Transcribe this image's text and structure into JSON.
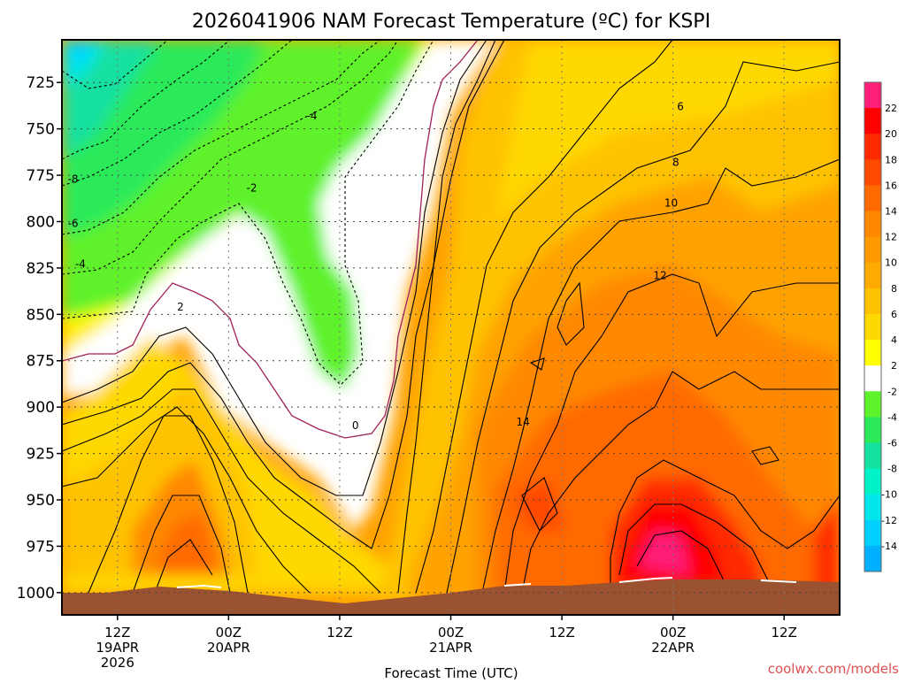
{
  "chart_data": {
    "type": "heatmap",
    "title": "2026041906 NAM Forecast Temperature (ºC) for KSPI",
    "xlabel": "Forecast Time (UTC)",
    "ylabel": "",
    "y_ticks": [
      725,
      750,
      775,
      800,
      825,
      850,
      875,
      900,
      925,
      950,
      975,
      1000
    ],
    "ylim": [
      1012,
      702
    ],
    "y_scale": "pressure (inverted)",
    "x_ticks": [
      {
        "line1": "12Z",
        "line2": "19APR",
        "line3": "2026"
      },
      {
        "line1": "00Z",
        "line2": "20APR",
        "line3": ""
      },
      {
        "line1": "12Z",
        "line2": "",
        "line3": ""
      },
      {
        "line1": "00Z",
        "line2": "21APR",
        "line3": ""
      },
      {
        "line1": "12Z",
        "line2": "",
        "line3": ""
      },
      {
        "line1": "00Z",
        "line2": "22APR",
        "line3": ""
      },
      {
        "line1": "12Z",
        "line2": "",
        "line3": ""
      }
    ],
    "x_tick_hours": [
      6,
      18,
      30,
      42,
      54,
      66,
      78
    ],
    "xlim": [
      0,
      84
    ],
    "grid": true,
    "colorbar_levels": [
      22,
      20,
      18,
      16,
      14,
      12,
      10,
      8,
      6,
      4,
      2,
      -2,
      -4,
      -6,
      -8,
      -10,
      -12,
      -14
    ],
    "colorbar_colors": [
      "#ff1e78",
      "#ff0000",
      "#ff2a00",
      "#ff4a00",
      "#ff6a00",
      "#ff8800",
      "#ff9a00",
      "#ffaa00",
      "#ffc200",
      "#ffd800",
      "#ffff00",
      "#ffffff",
      "#5ef22a",
      "#2aea5a",
      "#14e0a0",
      "#00f2c8",
      "#00e6ea",
      "#00d0ff",
      "#00b0ff"
    ],
    "contour_labels": [
      {
        "text": "-8",
        "hour": 1.2,
        "p": 777
      },
      {
        "text": "-6",
        "hour": 1.2,
        "p": 801
      },
      {
        "text": "-4",
        "hour": 2.0,
        "p": 823
      },
      {
        "text": "-4",
        "hour": 27,
        "p": 743
      },
      {
        "text": "-2",
        "hour": 20.5,
        "p": 782
      },
      {
        "text": "2",
        "hour": 12.8,
        "p": 846
      },
      {
        "text": "0",
        "hour": 31.7,
        "p": 910
      },
      {
        "text": "14",
        "hour": 49.8,
        "p": 908
      },
      {
        "text": "12",
        "hour": 64.6,
        "p": 829
      },
      {
        "text": "10",
        "hour": 65.8,
        "p": 790
      },
      {
        "text": "8",
        "hour": 66.3,
        "p": 768
      },
      {
        "text": "6",
        "hour": 66.8,
        "p": 738
      }
    ]
  },
  "footer": "coolwx.com/models",
  "colors": {
    "ground": "#9a5230",
    "frame": "#000000",
    "grid": "#555555",
    "zero_line": "#a0205a"
  }
}
